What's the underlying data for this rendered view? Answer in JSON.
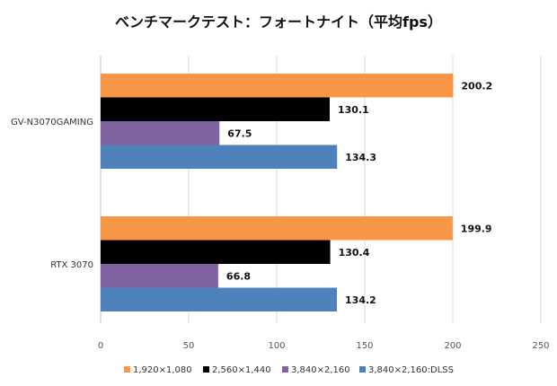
{
  "chart_data": {
    "type": "bar",
    "orientation": "horizontal",
    "title": "ベンチマークテスト：フォートナイト（平均fps）",
    "categories": [
      "GV-N3070GAMING",
      "RTX 3070"
    ],
    "series": [
      {
        "name": "1,920×1,080",
        "color": "#f79646",
        "values": [
          200.2,
          199.9
        ]
      },
      {
        "name": "2,560×1,440",
        "color": "#000000",
        "values": [
          130.1,
          130.4
        ]
      },
      {
        "name": "3,840×2,160",
        "color": "#8064a2",
        "values": [
          67.5,
          66.8
        ]
      },
      {
        "name": "3,840×2,160:DLSS",
        "color": "#4f81bd",
        "values": [
          134.3,
          134.2
        ]
      }
    ],
    "xlim": [
      0,
      250
    ],
    "xticks": [
      0,
      50,
      100,
      150,
      200,
      250
    ],
    "grid": true,
    "legend_position": "bottom",
    "xlabel": "",
    "ylabel": ""
  }
}
